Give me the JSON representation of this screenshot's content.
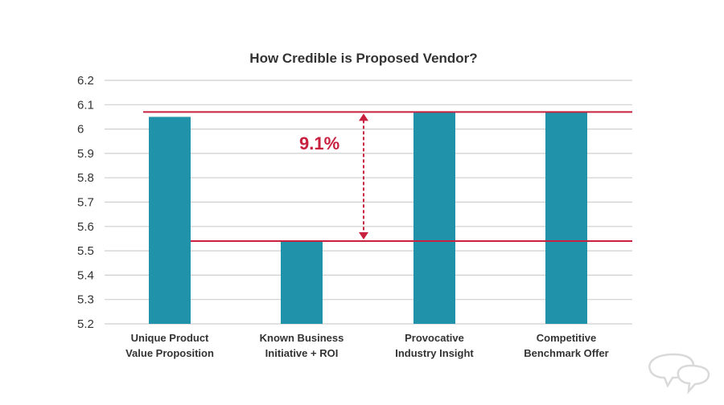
{
  "chart_data": {
    "type": "bar",
    "title": "How Credible is Proposed Vendor?",
    "categories": [
      [
        "Unique Product",
        "Value Proposition"
      ],
      [
        "Known Business",
        "Initiative + ROI"
      ],
      [
        "Provocative",
        "Industry Insight"
      ],
      [
        "Competitive",
        "Benchmark Offer"
      ]
    ],
    "values": [
      6.05,
      5.54,
      6.07,
      6.07
    ],
    "ylim": [
      5.2,
      6.2
    ],
    "yticks": [
      "6.2",
      "6.1",
      "6",
      "5.9",
      "5.8",
      "5.7",
      "5.6",
      "5.5",
      "5.4",
      "5.3",
      "5.2"
    ],
    "grid": true,
    "bar_color": "#2093ab",
    "annotation": {
      "label": "9.1%",
      "upper_value": 6.07,
      "lower_value": 5.54,
      "color": "#c8203f"
    }
  },
  "logo": {
    "icon": "speech-bubbles-icon",
    "color": "#d9d9d9"
  }
}
